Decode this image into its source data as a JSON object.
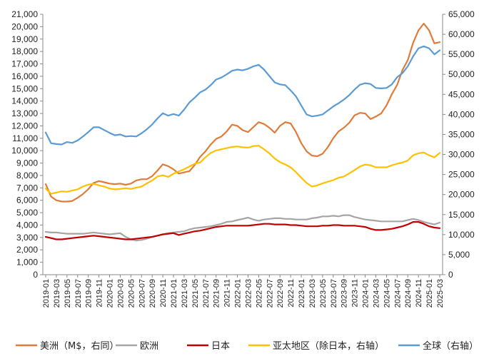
{
  "chart_data": {
    "type": "line",
    "title": "",
    "x": [
      "2019-01",
      "2019-02",
      "2019-03",
      "2019-04",
      "2019-05",
      "2019-06",
      "2019-07",
      "2019-08",
      "2019-09",
      "2019-10",
      "2019-11",
      "2019-12",
      "2020-01",
      "2020-02",
      "2020-03",
      "2020-04",
      "2020-05",
      "2020-06",
      "2020-07",
      "2020-08",
      "2020-09",
      "2020-10",
      "2020-11",
      "2020-12",
      "2021-01",
      "2021-02",
      "2021-03",
      "2021-04",
      "2021-05",
      "2021-06",
      "2021-07",
      "2021-08",
      "2021-09",
      "2021-10",
      "2021-11",
      "2021-12",
      "2022-01",
      "2022-02",
      "2022-03",
      "2022-04",
      "2022-05",
      "2022-06",
      "2022-07",
      "2022-08",
      "2022-09",
      "2022-10",
      "2022-11",
      "2022-12",
      "2023-01",
      "2023-02",
      "2023-03",
      "2023-04",
      "2023-05",
      "2023-06",
      "2023-07",
      "2023-08",
      "2023-09",
      "2023-10",
      "2023-11",
      "2023-12",
      "2024-01",
      "2024-02",
      "2024-03",
      "2024-04",
      "2024-05",
      "2024-06",
      "2024-07",
      "2024-08",
      "2024-09",
      "2024-10",
      "2024-11",
      "2024-12",
      "2025-01",
      "2025-02",
      "2025-03"
    ],
    "x_tick_labels": [
      "2019-01",
      "2019-03",
      "2019-05",
      "2019-07",
      "2019-09",
      "2019-11",
      "2020-01",
      "2020-03",
      "2020-05",
      "2020-07",
      "2020-09",
      "2020-11",
      "2021-01",
      "2021-03",
      "2021-05",
      "2021-07",
      "2021-09",
      "2021-11",
      "2022-01",
      "2022-03",
      "2022-05",
      "2022-07",
      "2022-09",
      "2022-11",
      "2023-01",
      "2023-03",
      "2023-05",
      "2023-07",
      "2023-09",
      "2023-11",
      "2024-01",
      "2024-03",
      "2024-05",
      "2024-07",
      "2024-09",
      "2024-11",
      "2025-01",
      "2025-03"
    ],
    "y_left": {
      "min": 0,
      "max": 21000,
      "step": 1000,
      "tick_labels": [
        "0",
        "1,000",
        "2,000",
        "3,000",
        "4,000",
        "5,000",
        "6,000",
        "7,000",
        "8,000",
        "9,000",
        "10,000",
        "11,000",
        "12,000",
        "13,000",
        "14,000",
        "15,000",
        "16,000",
        "17,000",
        "18,000",
        "19,000",
        "20,000",
        "21,000"
      ]
    },
    "y_right": {
      "min": 0,
      "max": 65000,
      "step": 5000,
      "tick_labels": [
        "0",
        "5,000",
        "10,000",
        "15,000",
        "20,000",
        "25,000",
        "30,000",
        "35,000",
        "40,000",
        "45,000",
        "50,000",
        "55,000",
        "60,000",
        "65,000"
      ]
    },
    "grid": false,
    "legend_position": "bottom",
    "series": [
      {
        "name": "美洲（M$，右同）",
        "axis": "left",
        "color": "#E07B39",
        "values": [
          7300,
          6300,
          6000,
          5900,
          5900,
          5950,
          6200,
          6500,
          6900,
          7400,
          7550,
          7450,
          7350,
          7300,
          7350,
          7250,
          7350,
          7600,
          7700,
          7700,
          7950,
          8400,
          8900,
          8750,
          8500,
          8150,
          8250,
          8350,
          8850,
          9500,
          9950,
          10500,
          10950,
          11150,
          11550,
          12100,
          12000,
          11650,
          11500,
          11900,
          12300,
          12150,
          11850,
          11450,
          12000,
          12300,
          12200,
          11500,
          10600,
          9950,
          9600,
          9550,
          9750,
          10300,
          11000,
          11550,
          11850,
          12250,
          12850,
          13050,
          13000,
          12550,
          12750,
          13000,
          13650,
          14550,
          15300,
          16500,
          17300,
          18700,
          19700,
          20250,
          19700,
          18650,
          18750
        ]
      },
      {
        "name": "欧洲",
        "axis": "left",
        "color": "#A5A5A5",
        "values": [
          3450,
          3400,
          3400,
          3350,
          3300,
          3300,
          3300,
          3300,
          3350,
          3400,
          3350,
          3300,
          3250,
          3300,
          3350,
          3050,
          2850,
          2750,
          2800,
          2900,
          3050,
          3150,
          3250,
          3350,
          3400,
          3450,
          3500,
          3650,
          3750,
          3800,
          3850,
          3900,
          4000,
          4100,
          4250,
          4300,
          4400,
          4500,
          4600,
          4450,
          4350,
          4450,
          4500,
          4550,
          4550,
          4500,
          4500,
          4450,
          4450,
          4450,
          4550,
          4600,
          4700,
          4700,
          4750,
          4700,
          4800,
          4800,
          4650,
          4550,
          4450,
          4400,
          4350,
          4300,
          4300,
          4300,
          4300,
          4300,
          4400,
          4500,
          4400,
          4250,
          4150,
          4050,
          4200
        ]
      },
      {
        "name": "日本",
        "axis": "left",
        "color": "#C00000",
        "values": [
          3050,
          2950,
          2850,
          2850,
          2900,
          2950,
          3000,
          3050,
          3100,
          3150,
          3100,
          3050,
          3000,
          2950,
          2900,
          2850,
          2850,
          2900,
          2950,
          3000,
          3050,
          3150,
          3250,
          3300,
          3350,
          3200,
          3300,
          3400,
          3500,
          3550,
          3650,
          3750,
          3850,
          3900,
          3950,
          3950,
          3950,
          3950,
          3950,
          4000,
          4050,
          4100,
          4100,
          4050,
          4050,
          4050,
          4000,
          4000,
          3950,
          3900,
          3900,
          3900,
          3950,
          3950,
          4000,
          4000,
          3950,
          3950,
          3950,
          3900,
          3850,
          3700,
          3600,
          3600,
          3650,
          3700,
          3800,
          3900,
          4050,
          4250,
          4250,
          4100,
          3900,
          3800,
          3750
        ]
      },
      {
        "name": "亚太地区（除日本，右轴）",
        "axis": "right",
        "color": "#FFC000",
        "values": [
          21500,
          20200,
          20500,
          20800,
          20700,
          21000,
          21300,
          22000,
          22500,
          22700,
          22300,
          22000,
          21500,
          21300,
          21400,
          21600,
          21400,
          21700,
          22000,
          22800,
          23500,
          24500,
          24800,
          24400,
          25200,
          25800,
          26300,
          27000,
          27700,
          28000,
          29300,
          30400,
          31000,
          31300,
          31600,
          31900,
          32000,
          31800,
          31700,
          32100,
          32200,
          31300,
          30300,
          29000,
          28100,
          27500,
          26800,
          25600,
          24200,
          22900,
          22000,
          22300,
          22800,
          23200,
          23600,
          24200,
          24500,
          25300,
          26100,
          27000,
          27500,
          27300,
          26800,
          26800,
          26800,
          27300,
          27700,
          28000,
          28500,
          29800,
          30300,
          30500,
          29800,
          29300,
          30400
        ]
      },
      {
        "name": "全球（右轴）",
        "axis": "right",
        "color": "#5B9BD5",
        "values": [
          35500,
          32800,
          32600,
          32500,
          33100,
          32900,
          33500,
          34500,
          35600,
          36800,
          36800,
          36100,
          35400,
          34800,
          35000,
          34500,
          34600,
          34500,
          35300,
          36300,
          37500,
          39000,
          40300,
          39700,
          40100,
          39700,
          41200,
          43000,
          44200,
          45500,
          46200,
          47300,
          48700,
          49200,
          50000,
          50900,
          51200,
          51000,
          51400,
          52000,
          52400,
          51200,
          49600,
          48000,
          47500,
          47300,
          46000,
          44500,
          42200,
          40000,
          39500,
          39700,
          40000,
          41000,
          42000,
          42800,
          43700,
          44800,
          46200,
          47400,
          47800,
          47600,
          46600,
          46500,
          46600,
          47500,
          49300,
          50300,
          52000,
          54500,
          56500,
          57000,
          56500,
          55000,
          56000
        ]
      }
    ]
  }
}
